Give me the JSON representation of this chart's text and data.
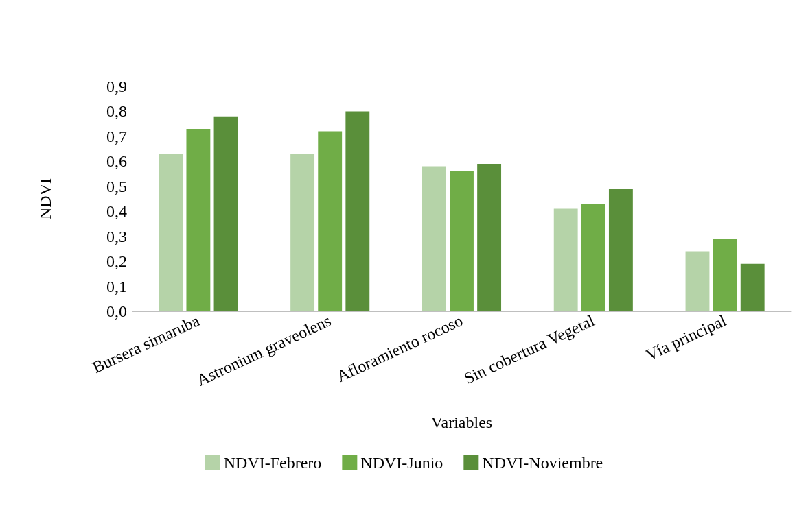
{
  "chart_data": {
    "type": "bar",
    "xlabel": "Variables",
    "ylabel": "NDVI",
    "categories": [
      "Bursera simaruba",
      "Astronium graveolens",
      "Afloramiento rocoso",
      "Sin cobertura Vegetal",
      "Vía principal"
    ],
    "series": [
      {
        "name": "NDVI-Febrero",
        "color": "#b5d3a8",
        "values": [
          0.63,
          0.63,
          0.58,
          0.41,
          0.24
        ]
      },
      {
        "name": "NDVI-Junio",
        "color": "#70ad47",
        "values": [
          0.73,
          0.72,
          0.56,
          0.43,
          0.29
        ]
      },
      {
        "name": "NDVI-Noviembre",
        "color": "#5a8f3a",
        "values": [
          0.78,
          0.8,
          0.59,
          0.49,
          0.19
        ]
      }
    ],
    "ylim": [
      0,
      0.9
    ],
    "yticks": [
      {
        "value": 0,
        "label": "0,0"
      },
      {
        "value": 0.1,
        "label": "0,1"
      },
      {
        "value": 0.2,
        "label": "0,2"
      },
      {
        "value": 0.3,
        "label": "0,3"
      },
      {
        "value": 0.4,
        "label": "0,4"
      },
      {
        "value": 0.5,
        "label": "0,5"
      },
      {
        "value": 0.6,
        "label": "0,6"
      },
      {
        "value": 0.7,
        "label": "0,7"
      },
      {
        "value": 0.8,
        "label": "0,8"
      },
      {
        "value": 0.9,
        "label": "0,9"
      }
    ],
    "grid": false,
    "legend": "bottom"
  }
}
